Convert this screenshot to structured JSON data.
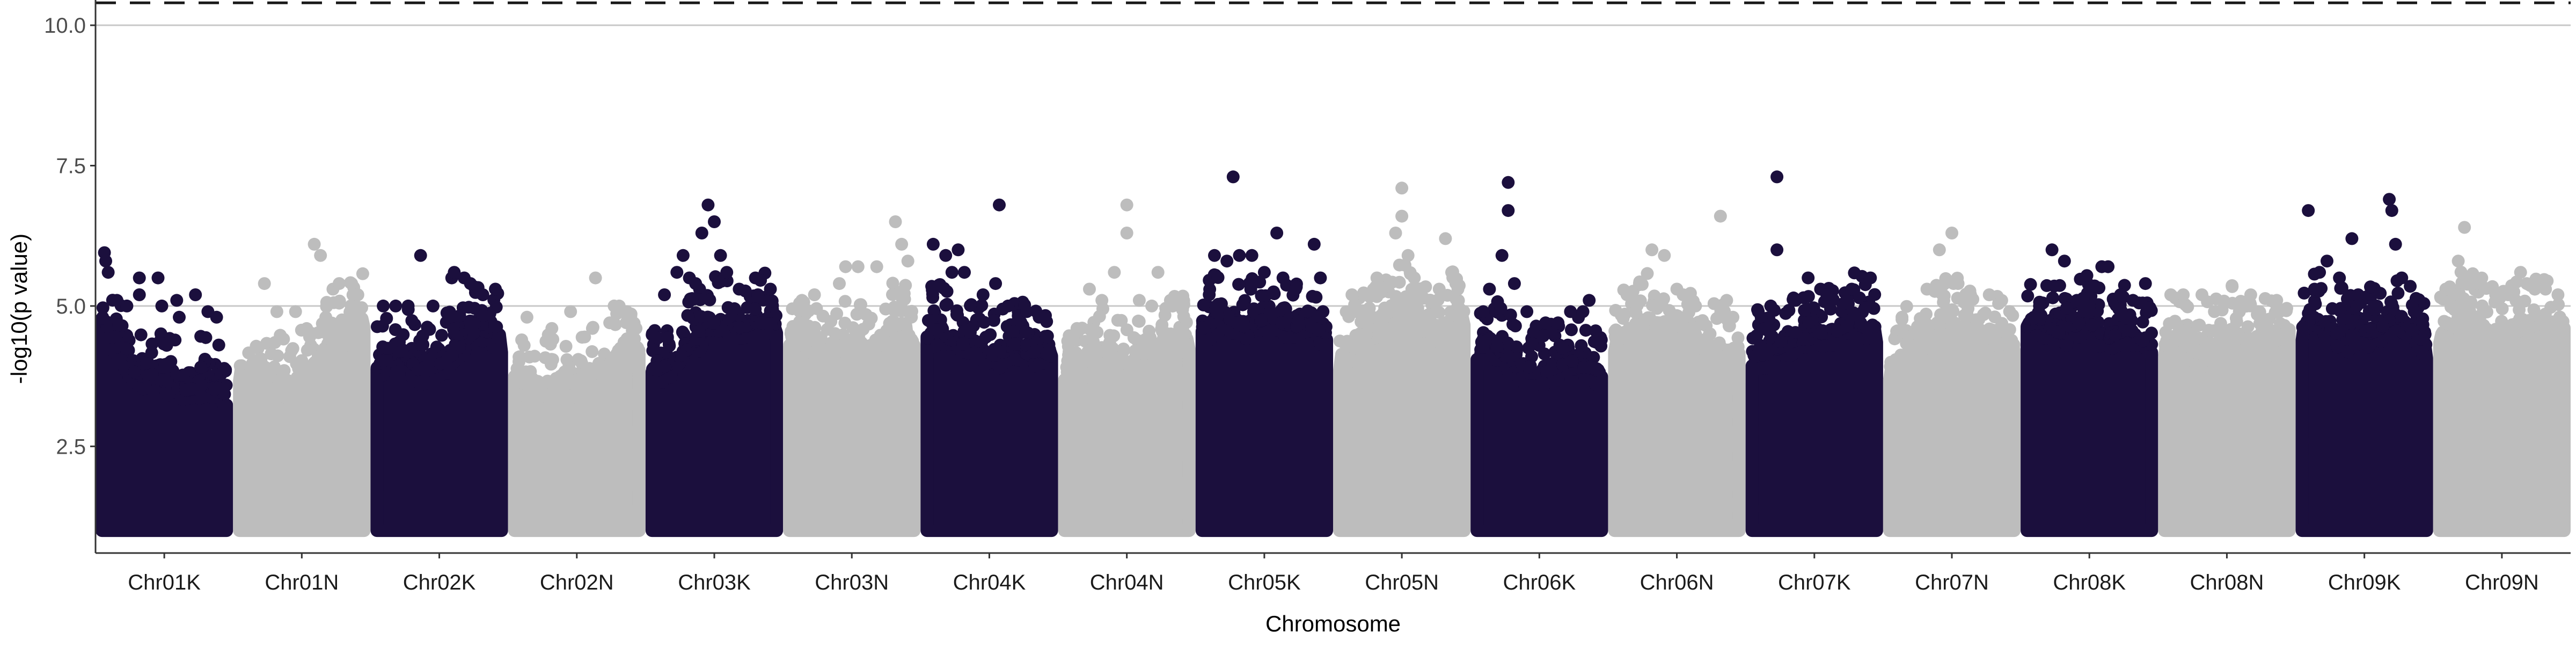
{
  "chart_data": {
    "type": "scatter",
    "subtype": "manhattan",
    "title": "",
    "xlabel": "Chromosome",
    "ylabel": "-log10(p value)",
    "ylim": [
      0.6,
      10.45
    ],
    "y_ticks": [
      2.5,
      5.0,
      7.5,
      10.0
    ],
    "y_tick_labels": [
      "2.5",
      "5.0",
      "7.5",
      "10.0"
    ],
    "grid": "horizontal major only",
    "legend": "none",
    "colors": {
      "odd": "#1b0f3d",
      "even": "#bdbdbd"
    },
    "reference_lines": [
      {
        "y": 5.0,
        "style": "solid",
        "color": "#c8c8c8"
      },
      {
        "y": 10.0,
        "style": "solid",
        "color": "#c8c8c8"
      },
      {
        "y": 10.4,
        "style": "dashed",
        "color": "#1a1a1a"
      }
    ],
    "dense_floor": 1.0,
    "categories": [
      "Chr01K",
      "Chr01N",
      "Chr02K",
      "Chr02N",
      "Chr03K",
      "Chr03N",
      "Chr04K",
      "Chr04N",
      "Chr05K",
      "Chr05N",
      "Chr06K",
      "Chr06N",
      "Chr07K",
      "Chr07N",
      "Chr08K",
      "Chr08N",
      "Chr09K",
      "Chr09N"
    ],
    "series": [
      {
        "chromosome": "Chr01K",
        "color": "#1b0f3d",
        "envelope": [
          5.0,
          4.6,
          4.2,
          4.0,
          3.9,
          3.9,
          3.8,
          3.7,
          3.7,
          3.8,
          3.7,
          3.6
        ],
        "peaks": [
          [
            0.02,
            5.95
          ],
          [
            0.03,
            5.8
          ],
          [
            0.05,
            5.6
          ],
          [
            0.12,
            5.1
          ],
          [
            0.2,
            5.0
          ],
          [
            0.3,
            5.2
          ],
          [
            0.3,
            5.5
          ],
          [
            0.45,
            5.5
          ],
          [
            0.48,
            5.0
          ],
          [
            0.6,
            5.1
          ],
          [
            0.62,
            4.8
          ],
          [
            0.75,
            5.2
          ],
          [
            0.85,
            4.9
          ],
          [
            0.92,
            4.8
          ]
        ]
      },
      {
        "chromosome": "Chr01N",
        "color": "#bdbdbd",
        "envelope": [
          4.1,
          3.9,
          4.0,
          3.9,
          3.8,
          3.8,
          4.0,
          4.2,
          4.6,
          4.8,
          4.7,
          5.0
        ],
        "peaks": [
          [
            0.2,
            5.4
          ],
          [
            0.3,
            4.9
          ],
          [
            0.45,
            4.9
          ],
          [
            0.6,
            6.1
          ],
          [
            0.65,
            5.9
          ],
          [
            0.75,
            5.3
          ],
          [
            0.8,
            5.4
          ],
          [
            0.9,
            5.4
          ],
          [
            0.95,
            5.2
          ]
        ]
      },
      {
        "chromosome": "Chr02K",
        "color": "#1b0f3d",
        "envelope": [
          4.1,
          4.3,
          4.4,
          4.2,
          4.0,
          4.1,
          4.2,
          4.4,
          4.6,
          4.8,
          4.7,
          4.6
        ],
        "peaks": [
          [
            0.05,
            5.0
          ],
          [
            0.15,
            5.0
          ],
          [
            0.25,
            5.0
          ],
          [
            0.35,
            5.9
          ],
          [
            0.45,
            5.0
          ],
          [
            0.6,
            5.5
          ],
          [
            0.62,
            5.6
          ],
          [
            0.7,
            5.5
          ],
          [
            0.75,
            5.4
          ],
          [
            0.85,
            5.2
          ],
          [
            0.95,
            5.3
          ]
        ]
      },
      {
        "chromosome": "Chr02N",
        "color": "#bdbdbd",
        "envelope": [
          3.9,
          3.8,
          3.7,
          3.8,
          3.9,
          3.8,
          4.0,
          4.0,
          4.1,
          4.3,
          4.5,
          4.4
        ],
        "peaks": [
          [
            0.1,
            4.8
          ],
          [
            0.3,
            4.6
          ],
          [
            0.45,
            4.9
          ],
          [
            0.65,
            5.5
          ],
          [
            0.8,
            5.0
          ],
          [
            0.9,
            4.9
          ]
        ]
      },
      {
        "chromosome": "Chr03K",
        "color": "#1b0f3d",
        "envelope": [
          4.0,
          4.1,
          4.2,
          4.4,
          4.6,
          4.8,
          4.9,
          4.8,
          4.8,
          4.9,
          4.9,
          4.8
        ],
        "peaks": [
          [
            0.1,
            5.2
          ],
          [
            0.2,
            5.6
          ],
          [
            0.25,
            5.9
          ],
          [
            0.3,
            5.5
          ],
          [
            0.35,
            5.4
          ],
          [
            0.4,
            6.3
          ],
          [
            0.45,
            6.8
          ],
          [
            0.5,
            6.5
          ],
          [
            0.55,
            5.9
          ],
          [
            0.6,
            5.6
          ],
          [
            0.7,
            5.3
          ],
          [
            0.85,
            5.2
          ],
          [
            0.95,
            5.3
          ]
        ]
      },
      {
        "chromosome": "Chr03N",
        "color": "#bdbdbd",
        "envelope": [
          4.5,
          4.7,
          4.6,
          4.4,
          4.3,
          4.4,
          4.5,
          4.4,
          4.5,
          4.8,
          4.9,
          4.5
        ],
        "peaks": [
          [
            0.1,
            5.1
          ],
          [
            0.2,
            5.2
          ],
          [
            0.4,
            5.4
          ],
          [
            0.45,
            5.7
          ],
          [
            0.55,
            5.7
          ],
          [
            0.7,
            5.7
          ],
          [
            0.85,
            6.5
          ],
          [
            0.9,
            6.1
          ],
          [
            0.95,
            5.8
          ]
        ]
      },
      {
        "chromosome": "Chr04K",
        "color": "#1b0f3d",
        "envelope": [
          4.6,
          4.8,
          4.6,
          4.5,
          4.6,
          4.4,
          4.3,
          4.4,
          4.5,
          4.3,
          4.4,
          4.3
        ],
        "peaks": [
          [
            0.05,
            6.1
          ],
          [
            0.15,
            5.9
          ],
          [
            0.2,
            5.6
          ],
          [
            0.25,
            6.0
          ],
          [
            0.3,
            5.6
          ],
          [
            0.45,
            5.2
          ],
          [
            0.55,
            5.4
          ],
          [
            0.58,
            6.8
          ],
          [
            0.65,
            5.0
          ],
          [
            0.8,
            4.9
          ],
          [
            0.9,
            4.8
          ]
        ]
      },
      {
        "chromosome": "Chr04N",
        "color": "#bdbdbd",
        "envelope": [
          4.0,
          4.0,
          4.2,
          4.4,
          4.3,
          4.1,
          4.2,
          4.4,
          4.3,
          4.5,
          4.6,
          4.5
        ],
        "peaks": [
          [
            0.1,
            4.6
          ],
          [
            0.2,
            5.3
          ],
          [
            0.3,
            5.1
          ],
          [
            0.4,
            5.6
          ],
          [
            0.5,
            6.8
          ],
          [
            0.5,
            6.3
          ],
          [
            0.6,
            5.1
          ],
          [
            0.7,
            5.0
          ],
          [
            0.75,
            5.6
          ],
          [
            0.85,
            5.1
          ],
          [
            0.95,
            5.0
          ]
        ]
      },
      {
        "chromosome": "Chr05K",
        "color": "#1b0f3d",
        "envelope": [
          4.7,
          4.9,
          5.0,
          4.9,
          4.8,
          4.9,
          5.0,
          4.9,
          4.8,
          4.9,
          4.8,
          4.7
        ],
        "peaks": [
          [
            0.1,
            5.9
          ],
          [
            0.2,
            5.8
          ],
          [
            0.25,
            7.3
          ],
          [
            0.3,
            5.9
          ],
          [
            0.4,
            5.9
          ],
          [
            0.5,
            5.6
          ],
          [
            0.6,
            6.3
          ],
          [
            0.65,
            5.5
          ],
          [
            0.75,
            5.3
          ],
          [
            0.9,
            6.1
          ],
          [
            0.95,
            5.5
          ]
        ]
      },
      {
        "chromosome": "Chr05N",
        "color": "#bdbdbd",
        "envelope": [
          4.3,
          4.4,
          4.6,
          4.8,
          5.0,
          5.2,
          5.0,
          4.8,
          4.7,
          4.8,
          5.0,
          5.1
        ],
        "peaks": [
          [
            0.1,
            5.2
          ],
          [
            0.3,
            5.5
          ],
          [
            0.45,
            6.3
          ],
          [
            0.5,
            6.6
          ],
          [
            0.5,
            7.1
          ],
          [
            0.55,
            5.9
          ],
          [
            0.6,
            5.5
          ],
          [
            0.8,
            5.3
          ],
          [
            0.85,
            6.2
          ],
          [
            0.9,
            5.6
          ],
          [
            0.95,
            5.3
          ]
        ]
      },
      {
        "chromosome": "Chr06K",
        "color": "#1b0f3d",
        "envelope": [
          4.3,
          4.6,
          4.4,
          4.2,
          4.0,
          4.0,
          4.0,
          4.1,
          4.2,
          4.1,
          4.1,
          4.0
        ],
        "peaks": [
          [
            0.05,
            4.9
          ],
          [
            0.1,
            5.3
          ],
          [
            0.2,
            5.9
          ],
          [
            0.25,
            7.2
          ],
          [
            0.25,
            6.7
          ],
          [
            0.3,
            5.4
          ],
          [
            0.4,
            4.9
          ],
          [
            0.55,
            4.7
          ],
          [
            0.65,
            4.7
          ],
          [
            0.75,
            4.9
          ],
          [
            0.85,
            4.9
          ],
          [
            0.9,
            5.1
          ]
        ]
      },
      {
        "chromosome": "Chr06N",
        "color": "#bdbdbd",
        "envelope": [
          4.5,
          4.7,
          4.8,
          4.9,
          4.9,
          4.8,
          4.7,
          4.5,
          4.4,
          4.5,
          4.4,
          4.3
        ],
        "peaks": [
          [
            0.1,
            5.2
          ],
          [
            0.2,
            5.4
          ],
          [
            0.3,
            6.0
          ],
          [
            0.4,
            5.9
          ],
          [
            0.5,
            5.3
          ],
          [
            0.55,
            5.2
          ],
          [
            0.65,
            5.0
          ],
          [
            0.85,
            6.6
          ],
          [
            0.9,
            5.1
          ],
          [
            0.95,
            4.8
          ]
        ]
      },
      {
        "chromosome": "Chr07K",
        "color": "#1b0f3d",
        "envelope": [
          4.3,
          4.3,
          4.4,
          4.5,
          4.6,
          4.6,
          4.7,
          4.7,
          4.8,
          4.9,
          4.8,
          4.8
        ],
        "peaks": [
          [
            0.05,
            4.9
          ],
          [
            0.15,
            5.0
          ],
          [
            0.2,
            7.3
          ],
          [
            0.2,
            6.0
          ],
          [
            0.35,
            5.1
          ],
          [
            0.45,
            5.5
          ],
          [
            0.55,
            5.3
          ],
          [
            0.6,
            5.2
          ],
          [
            0.8,
            5.3
          ],
          [
            0.95,
            5.5
          ]
        ]
      },
      {
        "chromosome": "Chr07N",
        "color": "#bdbdbd",
        "envelope": [
          4.1,
          4.2,
          4.4,
          4.6,
          4.8,
          4.9,
          4.8,
          4.7,
          4.6,
          4.5,
          4.5,
          4.4
        ],
        "peaks": [
          [
            0.1,
            4.8
          ],
          [
            0.3,
            5.3
          ],
          [
            0.4,
            6.0
          ],
          [
            0.5,
            6.3
          ],
          [
            0.55,
            5.4
          ],
          [
            0.65,
            5.2
          ],
          [
            0.8,
            5.2
          ],
          [
            0.9,
            5.1
          ]
        ]
      },
      {
        "chromosome": "Chr08K",
        "color": "#1b0f3d",
        "envelope": [
          4.8,
          4.9,
          4.8,
          4.7,
          4.8,
          4.9,
          4.8,
          4.6,
          4.7,
          4.8,
          4.6,
          4.5
        ],
        "peaks": [
          [
            0.1,
            5.0
          ],
          [
            0.2,
            6.0
          ],
          [
            0.3,
            5.8
          ],
          [
            0.4,
            5.1
          ],
          [
            0.5,
            5.0
          ],
          [
            0.6,
            5.7
          ],
          [
            0.65,
            5.7
          ],
          [
            0.75,
            5.2
          ],
          [
            0.85,
            5.1
          ],
          [
            0.95,
            5.4
          ]
        ]
      },
      {
        "chromosome": "Chr08N",
        "color": "#bdbdbd",
        "envelope": [
          4.5,
          4.6,
          4.5,
          4.3,
          4.4,
          4.6,
          4.7,
          4.6,
          4.5,
          4.5,
          4.6,
          4.7
        ],
        "peaks": [
          [
            0.05,
            5.2
          ],
          [
            0.15,
            5.2
          ],
          [
            0.3,
            5.2
          ],
          [
            0.4,
            4.9
          ],
          [
            0.6,
            4.9
          ],
          [
            0.75,
            4.9
          ],
          [
            0.9,
            5.1
          ]
        ]
      },
      {
        "chromosome": "Chr09K",
        "color": "#1b0f3d",
        "envelope": [
          4.8,
          5.0,
          4.9,
          4.7,
          4.6,
          4.8,
          4.7,
          4.8,
          5.0,
          4.9,
          4.7,
          4.5
        ],
        "peaks": [
          [
            0.05,
            6.7
          ],
          [
            0.1,
            5.3
          ],
          [
            0.2,
            5.8
          ],
          [
            0.3,
            5.5
          ],
          [
            0.4,
            6.2
          ],
          [
            0.45,
            5.2
          ],
          [
            0.6,
            5.0
          ],
          [
            0.7,
            6.9
          ],
          [
            0.72,
            6.7
          ],
          [
            0.75,
            6.1
          ],
          [
            0.8,
            5.5
          ],
          [
            0.9,
            4.9
          ]
        ]
      },
      {
        "chromosome": "Chr09N",
        "color": "#bdbdbd",
        "envelope": [
          4.6,
          4.8,
          5.0,
          4.9,
          4.8,
          4.7,
          4.8,
          4.9,
          4.8,
          4.9,
          4.8,
          4.8
        ],
        "peaks": [
          [
            0.05,
            5.3
          ],
          [
            0.15,
            5.8
          ],
          [
            0.2,
            6.4
          ],
          [
            0.3,
            5.4
          ],
          [
            0.45,
            5.2
          ],
          [
            0.55,
            5.2
          ],
          [
            0.65,
            5.6
          ],
          [
            0.7,
            5.4
          ],
          [
            0.85,
            5.3
          ],
          [
            0.95,
            5.2
          ]
        ]
      }
    ]
  }
}
